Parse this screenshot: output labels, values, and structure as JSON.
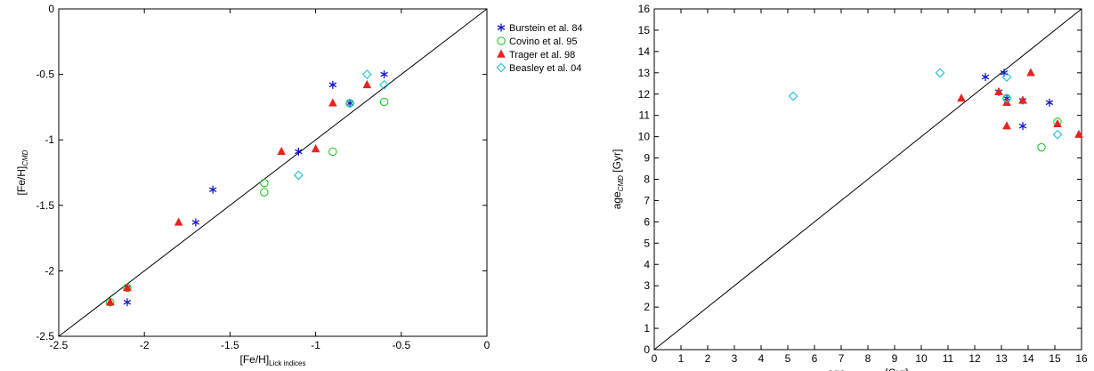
{
  "series_styles": [
    {
      "name": "Burstein et al. 84",
      "marker": "asterisk",
      "color": "#1515c8"
    },
    {
      "name": "Covino et al. 95",
      "marker": "circle",
      "color": "#22cc22"
    },
    {
      "name": "Trager et al. 98",
      "marker": "triangle",
      "color": "#e8231d"
    },
    {
      "name": "Beasley et al. 04",
      "marker": "diamond",
      "color": "#22c0d0"
    }
  ],
  "chart_data": [
    {
      "type": "scatter",
      "xlabel": {
        "main": "[Fe/H]",
        "sub": "Lick indices"
      },
      "ylabel": {
        "main": "[Fe/H]",
        "sub": "CMD"
      },
      "xlim": [
        -2.5,
        0
      ],
      "ylim": [
        -2.5,
        0
      ],
      "xticks": [
        "-2.5",
        "-2",
        "-1.5",
        "-1",
        "-0.5",
        "0"
      ],
      "yticks": [
        "-2.5",
        "-2",
        "-1.5",
        "-1",
        "-0.5",
        "0"
      ],
      "diagonal": true,
      "legend_position": "outside-right",
      "series": [
        {
          "name": "Burstein et al. 84",
          "points": [
            [
              -2.1,
              -2.24
            ],
            [
              -2.1,
              -2.13
            ],
            [
              -1.7,
              -1.63
            ],
            [
              -1.6,
              -1.38
            ],
            [
              -1.1,
              -1.09
            ],
            [
              -0.9,
              -0.58
            ],
            [
              -0.8,
              -0.72
            ],
            [
              -0.6,
              -0.5
            ]
          ]
        },
        {
          "name": "Covino et al. 95",
          "points": [
            [
              -2.2,
              -2.24
            ],
            [
              -2.1,
              -2.13
            ],
            [
              -1.3,
              -1.33
            ],
            [
              -1.3,
              -1.4
            ],
            [
              -0.9,
              -1.09
            ],
            [
              -0.8,
              -0.72
            ],
            [
              -0.6,
              -0.71
            ]
          ]
        },
        {
          "name": "Trager et al. 98",
          "points": [
            [
              -2.2,
              -2.24
            ],
            [
              -2.1,
              -2.13
            ],
            [
              -1.8,
              -1.63
            ],
            [
              -1.2,
              -1.09
            ],
            [
              -1.0,
              -1.07
            ],
            [
              -0.9,
              -0.72
            ],
            [
              -0.7,
              -0.58
            ]
          ]
        },
        {
          "name": "Beasley et al. 04",
          "points": [
            [
              -1.1,
              -1.27
            ],
            [
              -0.8,
              -0.72
            ],
            [
              -0.7,
              -0.5
            ],
            [
              -0.6,
              -0.58
            ]
          ]
        }
      ]
    },
    {
      "type": "scatter",
      "xlabel": {
        "main": "age",
        "sub": "Lick indices",
        "suffix": " [Gyr]"
      },
      "ylabel": {
        "main": "age",
        "sub": "CMD",
        "suffix": " [Gyr]"
      },
      "xlim": [
        0,
        16
      ],
      "ylim": [
        0,
        16
      ],
      "xticks": [
        "0",
        "1",
        "2",
        "3",
        "4",
        "5",
        "6",
        "7",
        "8",
        "9",
        "10",
        "11",
        "12",
        "13",
        "14",
        "15",
        "16"
      ],
      "yticks": [
        "0",
        "1",
        "2",
        "3",
        "4",
        "5",
        "6",
        "7",
        "8",
        "9",
        "10",
        "11",
        "12",
        "13",
        "14",
        "15",
        "16"
      ],
      "diagonal": true,
      "series": [
        {
          "name": "Burstein et al. 84",
          "points": [
            [
              12.4,
              12.8
            ],
            [
              13.1,
              13.0
            ],
            [
              13.2,
              11.8
            ],
            [
              12.9,
              12.1
            ],
            [
              13.8,
              11.7
            ],
            [
              14.8,
              11.6
            ],
            [
              13.8,
              10.5
            ]
          ]
        },
        {
          "name": "Covino et al. 95",
          "points": [
            [
              13.2,
              11.8
            ],
            [
              14.5,
              9.5
            ],
            [
              15.1,
              10.7
            ]
          ]
        },
        {
          "name": "Trager et al. 98",
          "points": [
            [
              11.5,
              11.8
            ],
            [
              12.9,
              12.1
            ],
            [
              13.2,
              11.6
            ],
            [
              13.2,
              10.5
            ],
            [
              13.8,
              11.7
            ],
            [
              14.1,
              13.0
            ],
            [
              15.1,
              10.6
            ],
            [
              15.9,
              10.1
            ]
          ]
        },
        {
          "name": "Beasley et al. 04",
          "points": [
            [
              5.2,
              11.9
            ],
            [
              10.7,
              13.0
            ],
            [
              13.2,
              12.8
            ],
            [
              13.2,
              11.8
            ],
            [
              15.1,
              10.1
            ]
          ]
        }
      ]
    }
  ]
}
